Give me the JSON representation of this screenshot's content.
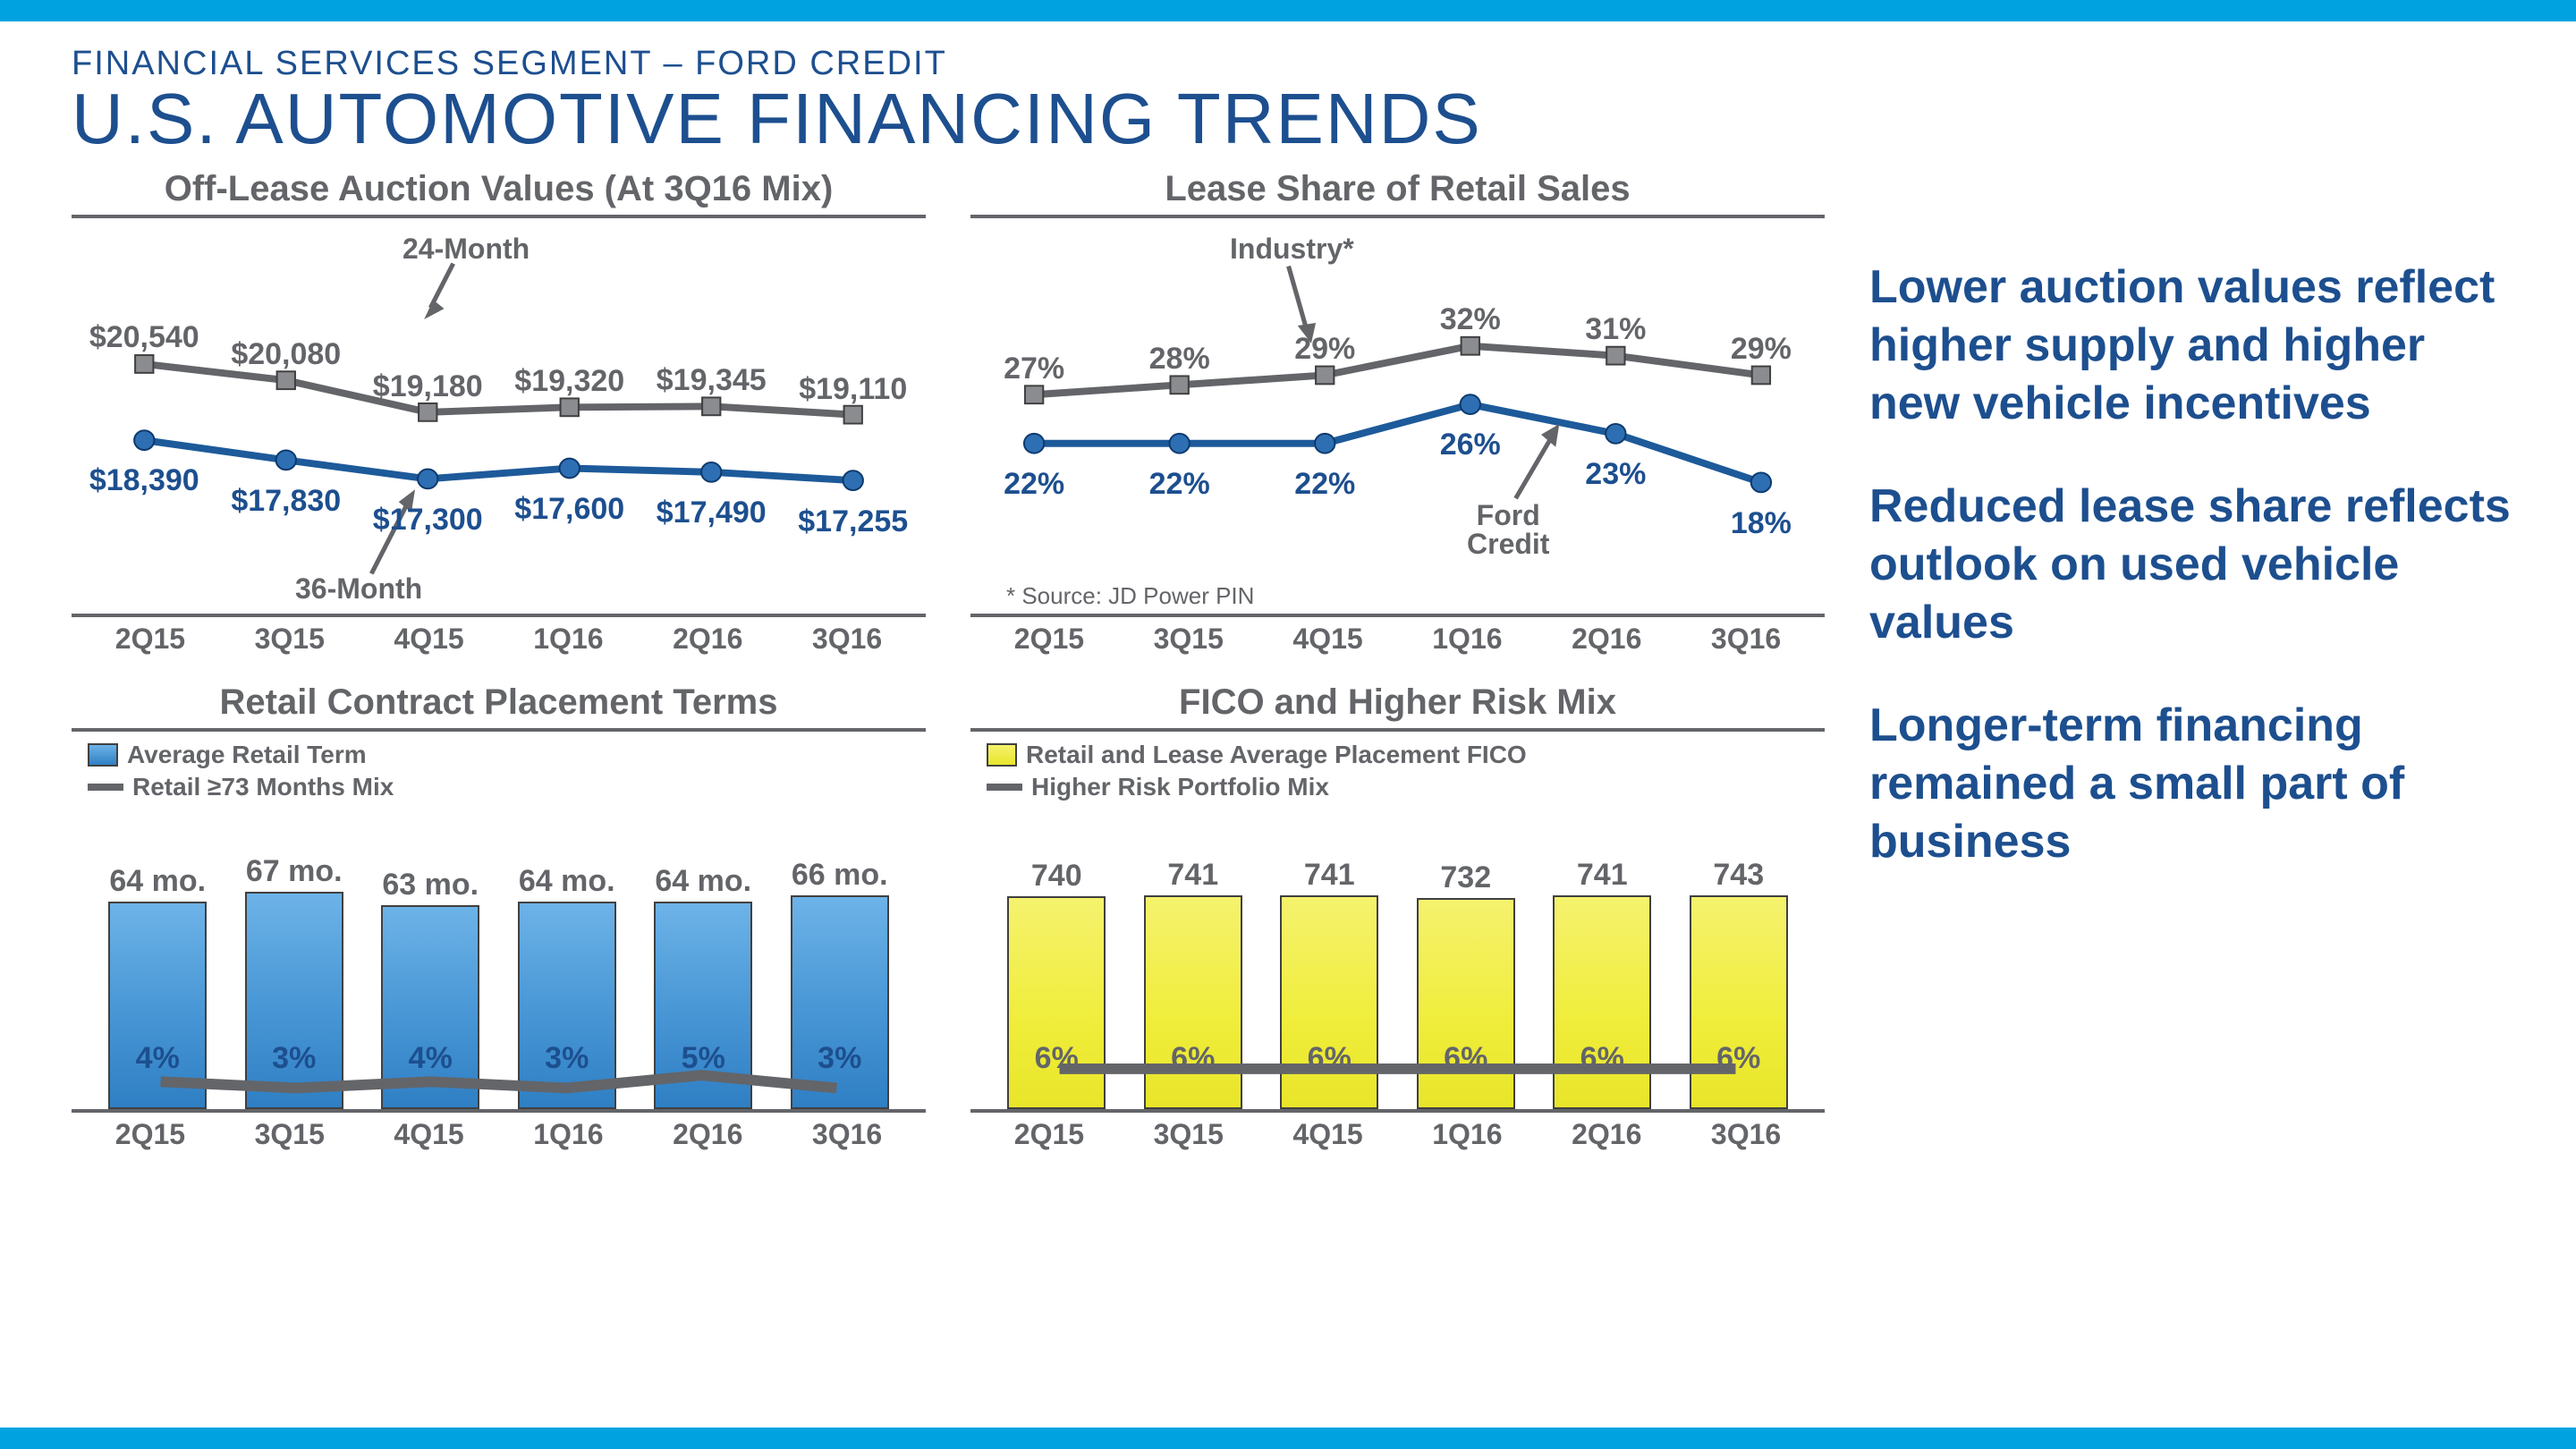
{
  "header": {
    "subtitle": "FINANCIAL SERVICES SEGMENT – FORD CREDIT",
    "title": "U.S. AUTOMOTIVE FINANCING TRENDS"
  },
  "colors": {
    "accent_bar": "#00a3e0",
    "gray": "#636569",
    "blue": "#1d5a9a",
    "text_blue": "#1d4f8f",
    "bar_blue_top": "#6db3e8",
    "bar_blue_bot": "#2f7fc4",
    "bar_yellow_top": "#f5f26e",
    "bar_yellow_bot": "#e8e52a",
    "marker_gray_fill": "#8a8c90",
    "marker_blue_fill": "#2e6fb3"
  },
  "x_categories": [
    "2Q15",
    "3Q15",
    "4Q15",
    "1Q16",
    "2Q16",
    "3Q16"
  ],
  "chart1": {
    "title": "Off-Lease Auction Values (At 3Q16 Mix)",
    "type": "line",
    "series": [
      {
        "name": "24-Month",
        "color": "#636569",
        "marker": "square",
        "values": [
          20540,
          20080,
          19180,
          19320,
          19345,
          19110
        ],
        "labels": [
          "$20,540",
          "$20,080",
          "$19,180",
          "$19,320",
          "$19,345",
          "$19,110"
        ]
      },
      {
        "name": "36-Month",
        "color": "#1d5a9a",
        "marker": "circle",
        "values": [
          18390,
          17830,
          17300,
          17600,
          17490,
          17255
        ],
        "labels": [
          "$18,390",
          "$17,830",
          "$17,300",
          "$17,600",
          "$17,490",
          "$17,255"
        ]
      }
    ],
    "ylim": [
      15000,
      23000
    ]
  },
  "chart2": {
    "title": "Lease Share of Retail Sales",
    "type": "line",
    "footnote": "*    Source: JD Power PIN",
    "series": [
      {
        "name": "Industry*",
        "color": "#636569",
        "marker": "square",
        "values": [
          27,
          28,
          29,
          32,
          31,
          29
        ],
        "labels": [
          "27%",
          "28%",
          "29%",
          "32%",
          "31%",
          "29%"
        ]
      },
      {
        "name": "Ford Credit",
        "color": "#1d5a9a",
        "marker": "circle",
        "values": [
          22,
          22,
          22,
          26,
          23,
          18
        ],
        "labels": [
          "22%",
          "22%",
          "22%",
          "26%",
          "23%",
          "18%"
        ]
      }
    ],
    "ylim": [
      10,
      40
    ]
  },
  "chart3": {
    "title": "Retail Contract Placement Terms",
    "type": "bar_line",
    "legend": {
      "bar": "Average Retail Term",
      "line": "Retail ≥73 Months Mix"
    },
    "bars": {
      "values": [
        64,
        67,
        63,
        64,
        64,
        66
      ],
      "labels": [
        "64 mo.",
        "67 mo.",
        "63 mo.",
        "64 mo.",
        "64 mo.",
        "66 mo."
      ],
      "color": "blue",
      "ylim": [
        0,
        80
      ]
    },
    "line": {
      "values": [
        4,
        3,
        4,
        3,
        5,
        3
      ],
      "labels": [
        "4%",
        "3%",
        "4%",
        "3%",
        "5%",
        "3%"
      ],
      "ylim": [
        0,
        40
      ]
    }
  },
  "chart4": {
    "title": "FICO and Higher Risk Mix",
    "type": "bar_line",
    "legend": {
      "bar": "Retail and Lease Average Placement FICO",
      "line": "Higher Risk Portfolio Mix"
    },
    "bars": {
      "values": [
        740,
        741,
        741,
        732,
        741,
        743
      ],
      "labels": [
        "740",
        "741",
        "741",
        "732",
        "741",
        "743"
      ],
      "color": "yellow",
      "ylim": [
        0,
        900
      ]
    },
    "line": {
      "values": [
        6,
        6,
        6,
        6,
        6,
        6
      ],
      "labels": [
        "6%",
        "6%",
        "6%",
        "6%",
        "6%",
        "6%"
      ],
      "ylim": [
        0,
        40
      ]
    }
  },
  "bullets": [
    "Lower auction values reflect higher supply and higher new vehicle incentives",
    "Reduced lease share reflects outlook on used vehicle values",
    "Longer-term financing remained a small part of business"
  ]
}
